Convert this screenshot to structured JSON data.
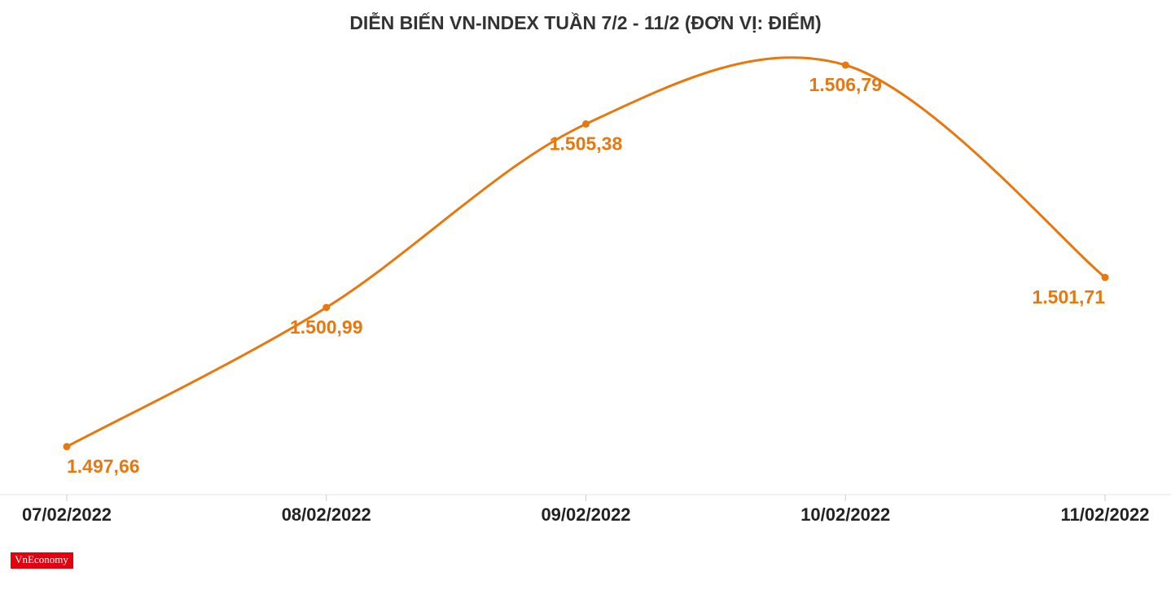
{
  "chart_data": {
    "type": "line",
    "title": "DIỄN BIẾN VN-INDEX TUẦN 7/2 - 11/2 (ĐƠN VỊ: ĐIỂM)",
    "categories": [
      "07/02/2022",
      "08/02/2022",
      "09/02/2022",
      "10/02/2022",
      "11/02/2022"
    ],
    "series": [
      {
        "name": "VN-Index",
        "color": "#e8770e",
        "values": [
          1497.66,
          1500.99,
          1505.38,
          1506.79,
          1501.71
        ],
        "value_labels": [
          "1.497,66",
          "1.500,99",
          "1.505,38",
          "1.506,79",
          "1.501,71"
        ]
      }
    ],
    "grid": false
  },
  "logo": "VnEconomy"
}
